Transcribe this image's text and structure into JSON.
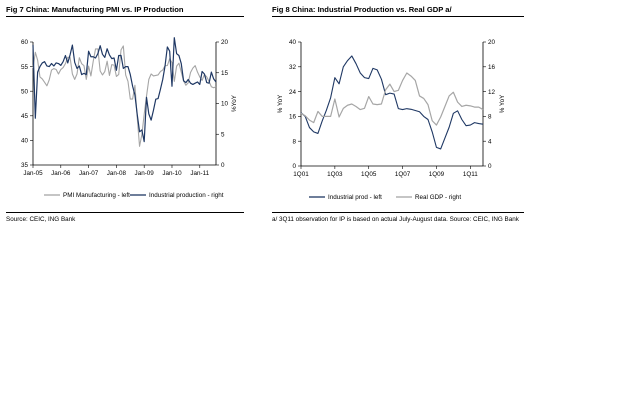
{
  "figures": [
    {
      "title": "Fig 7  China: Manufacturing PMI vs. IP Production",
      "source": "Source: CEIC, ING Bank",
      "chart_data": {
        "type": "line",
        "x_tick_labels": [
          "Jan-05",
          "Jan-06",
          "Jan-07",
          "Jan-08",
          "Jan-09",
          "Jan-10",
          "Jan-11"
        ],
        "y_left": {
          "min": 35,
          "max": 60,
          "ticks": [
            35,
            40,
            45,
            50,
            55,
            60
          ]
        },
        "y_right": {
          "min": 0,
          "max": 20,
          "ticks": [
            0,
            5,
            10,
            15,
            20
          ],
          "label": "%YoY"
        },
        "grid": false,
        "legend_position": "bottom",
        "x_start": "2005-01",
        "series": [
          {
            "name": "PMI Manufacturing - left",
            "axis": "left",
            "color": "#a6a6a6",
            "values": [
              54.7,
              57.9,
              56.3,
              52.9,
              52.5,
              51.8,
              51.1,
              52.3,
              54.3,
              54.6,
              54.4,
              53.5,
              54.4,
              54.8,
              55.6,
              56.9,
              56.9,
              53.5,
              52.4,
              53.5,
              56.8,
              55.6,
              55.2,
              52.4,
              55.1,
              53.1,
              56.1,
              58.6,
              58.6,
              54.1,
              53.3,
              54.0,
              56.1,
              53.2,
              55.4,
              55.3,
              53.0,
              53.4,
              58.4,
              59.2,
              53.3,
              52.0,
              48.4,
              48.4,
              51.2,
              44.6,
              38.8,
              41.2,
              45.3,
              49.0,
              52.4,
              53.5,
              53.1,
              53.2,
              53.3,
              54.0,
              54.3,
              55.2,
              55.2,
              56.6,
              55.8,
              52.0,
              55.1,
              55.7,
              53.9,
              52.1,
              51.2,
              51.7,
              53.8,
              54.7,
              55.2,
              53.9,
              52.9,
              52.2,
              53.4,
              52.9,
              52.0,
              50.9,
              50.7,
              50.9
            ]
          },
          {
            "name": "Industrial production - right",
            "axis": "right",
            "color": "#1f3864",
            "values": [
              19.5,
              7.6,
              15.1,
              16.0,
              16.6,
              16.8,
              16.1,
              16.0,
              16.5,
              16.1,
              16.6,
              16.5,
              16.2,
              16.8,
              17.8,
              16.6,
              17.9,
              19.5,
              16.7,
              15.7,
              16.1,
              14.7,
              14.9,
              14.7,
              18.5,
              17.6,
              17.6,
              17.4,
              18.1,
              19.4,
              18.0,
              17.5,
              18.9,
              17.9,
              17.3,
              17.4,
              15.4,
              17.8,
              17.8,
              15.7,
              16.0,
              16.0,
              14.7,
              12.8,
              11.4,
              8.2,
              5.4,
              5.7,
              3.8,
              11.0,
              8.3,
              7.3,
              8.9,
              10.7,
              10.8,
              12.3,
              13.9,
              16.1,
              19.2,
              18.5,
              12.8,
              20.7,
              18.1,
              17.8,
              16.5,
              13.7,
              13.4,
              13.9,
              13.3,
              13.1,
              13.3,
              13.5,
              13.1,
              15.2,
              14.8,
              13.4,
              13.3,
              15.1,
              14.0,
              13.5
            ]
          }
        ]
      }
    },
    {
      "title": "Fig 8  China: Industrial Production vs. Real GDP a/",
      "source": "a/ 3Q11 observation for IP is based on actual July-August data. Source: CEIC, ING Bank",
      "chart_data": {
        "type": "line",
        "x_tick_labels": [
          "1Q01",
          "1Q03",
          "1Q05",
          "1Q07",
          "1Q09",
          "1Q11"
        ],
        "y_left": {
          "min": 0,
          "max": 40,
          "ticks": [
            0,
            8,
            16,
            24,
            32,
            40
          ],
          "label": "% YoY"
        },
        "y_right": {
          "min": 0,
          "max": 20,
          "ticks": [
            0,
            4,
            8,
            12,
            16,
            20
          ],
          "label": "% YoY"
        },
        "grid": false,
        "legend_position": "bottom",
        "x_start": "1Q01",
        "series": [
          {
            "name": "Industrial prod - left",
            "axis": "left",
            "color": "#1f3864",
            "values": [
              17.2,
              16.0,
              12.4,
              11.0,
              10.5,
              14.5,
              18.0,
              22.0,
              28.5,
              26.5,
              32.0,
              34.0,
              35.5,
              33.0,
              30.0,
              28.5,
              28.2,
              31.5,
              31.0,
              28.0,
              23.0,
              23.5,
              23.2,
              18.5,
              18.2,
              18.5,
              18.3,
              17.9,
              17.5,
              16.0,
              15.0,
              11.0,
              6.0,
              5.5,
              9.0,
              12.5,
              17.0,
              17.8,
              15.0,
              13.0,
              13.2,
              14.0,
              13.7,
              13.5
            ]
          },
          {
            "name": "Real GDP - right",
            "axis": "right",
            "color": "#a6a6a6",
            "values": [
              8.5,
              8.1,
              7.4,
              7.0,
              8.8,
              8.0,
              8.0,
              8.0,
              10.8,
              7.9,
              9.3,
              9.8,
              10.0,
              9.6,
              9.1,
              9.3,
              11.2,
              10.0,
              9.9,
              10.0,
              12.3,
              13.2,
              12.0,
              12.2,
              13.8,
              15.0,
              14.5,
              13.8,
              11.3,
              10.9,
              9.9,
              7.3,
              6.6,
              7.9,
              9.6,
              11.3,
              11.9,
              10.3,
              9.6,
              9.8,
              9.7,
              9.5,
              9.5,
              9.1
            ]
          }
        ]
      }
    }
  ]
}
